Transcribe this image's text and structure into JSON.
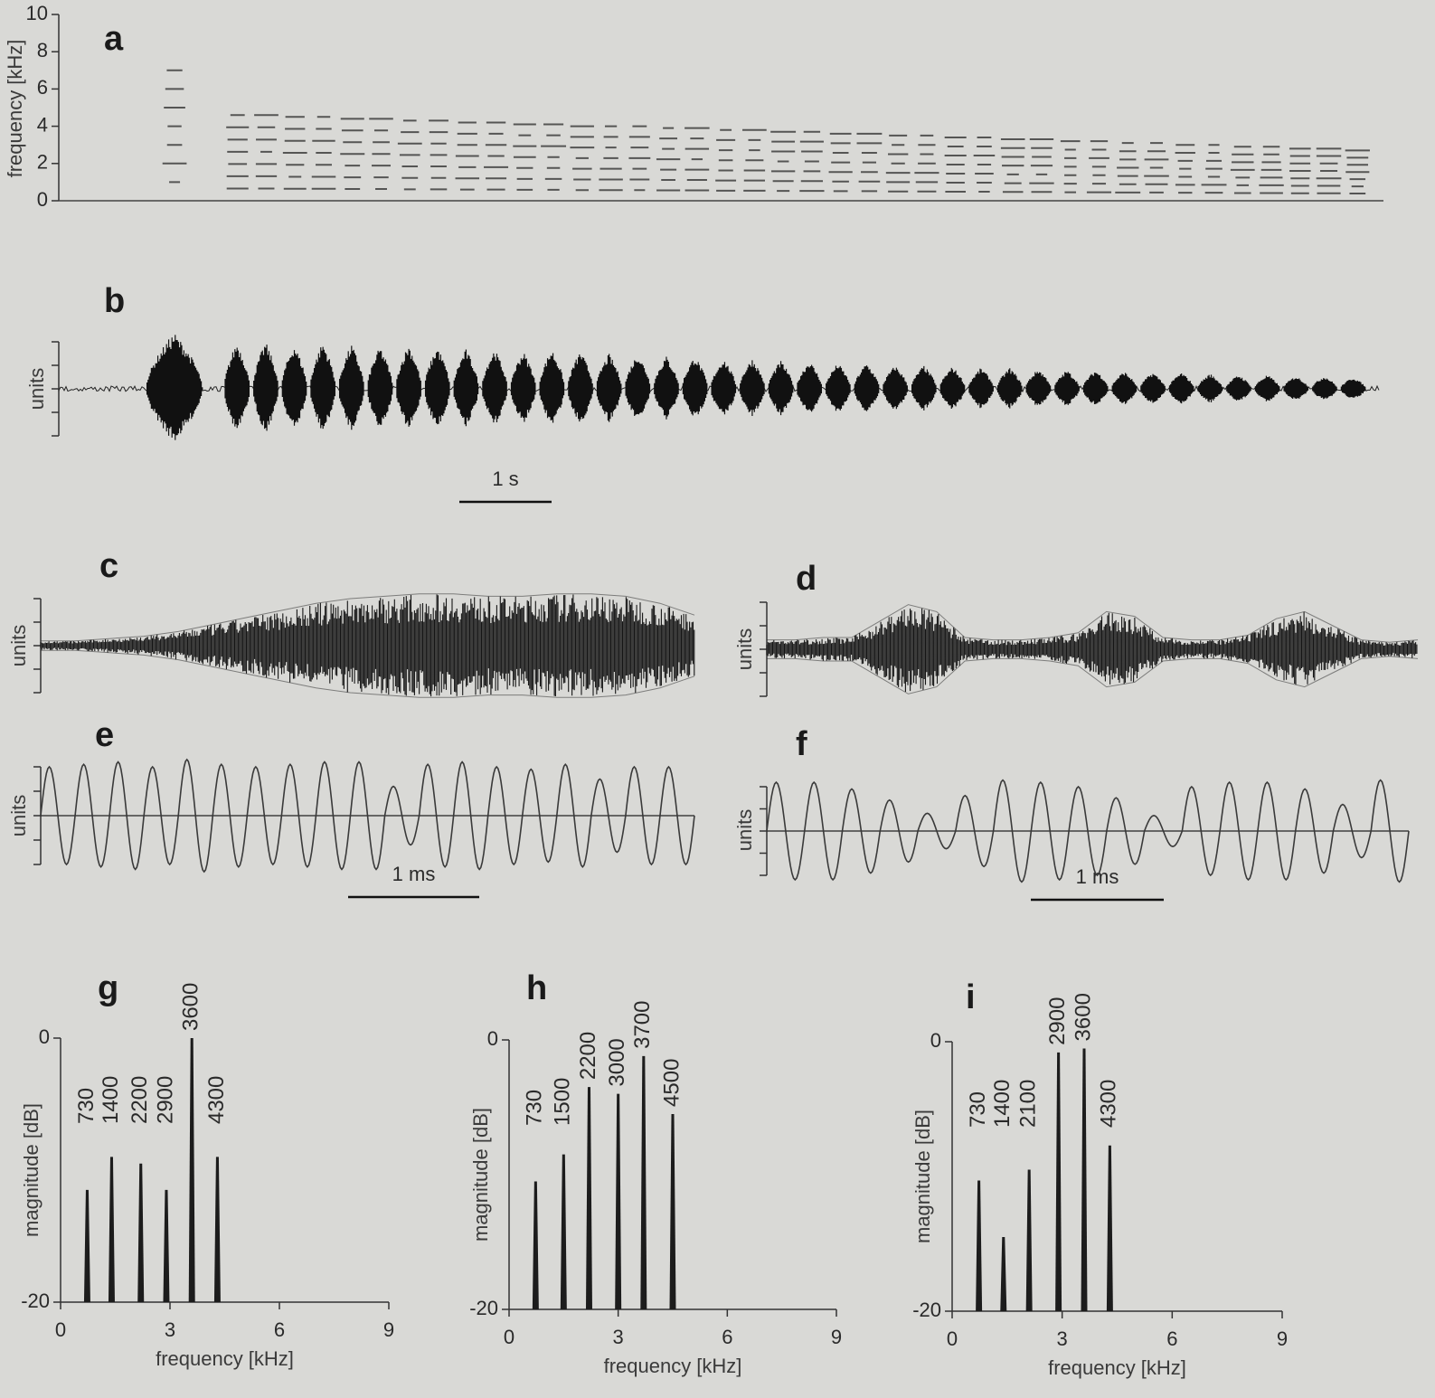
{
  "chart_data": [
    {
      "type": "spectrogram",
      "panel": "a",
      "y_label": "frequency [kHz]",
      "x": [
        1.25,
        1.93,
        2.24,
        2.55,
        2.86,
        3.17,
        3.48,
        3.79,
        4.1,
        4.41,
        4.72,
        5.03,
        5.34,
        5.65,
        5.96,
        6.27,
        6.58,
        6.89,
        7.2,
        7.51,
        7.82,
        8.13,
        8.44,
        8.75,
        9.06,
        9.37,
        9.68,
        9.99,
        10.3,
        10.61,
        10.92,
        11.23,
        11.54,
        11.85,
        12.16,
        12.47,
        12.78,
        13.09,
        13.4,
        13.71,
        14.02
      ],
      "values": [
        7.0,
        4.6,
        4.6,
        4.5,
        4.5,
        4.4,
        4.4,
        4.3,
        4.3,
        4.2,
        4.2,
        4.1,
        4.1,
        4.0,
        4.0,
        4.0,
        3.9,
        3.9,
        3.8,
        3.8,
        3.7,
        3.7,
        3.6,
        3.6,
        3.5,
        3.5,
        3.4,
        3.4,
        3.3,
        3.3,
        3.2,
        3.2,
        3.1,
        3.1,
        3.0,
        3.0,
        2.9,
        2.9,
        2.8,
        2.8,
        2.7
      ],
      "xlim": [
        0,
        14.3
      ],
      "ylim": [
        0,
        10
      ],
      "yticks": [
        0,
        2,
        4,
        6,
        8,
        10
      ]
    },
    {
      "type": "pulses",
      "panel": "b",
      "y_label": "units",
      "x": [
        1.25,
        1.93,
        2.24,
        2.55,
        2.86,
        3.17,
        3.48,
        3.79,
        4.1,
        4.41,
        4.72,
        5.03,
        5.34,
        5.65,
        5.96,
        6.27,
        6.58,
        6.89,
        7.2,
        7.51,
        7.82,
        8.13,
        8.44,
        8.75,
        9.06,
        9.37,
        9.68,
        9.99,
        10.3,
        10.61,
        10.92,
        11.23,
        11.54,
        11.85,
        12.16,
        12.47,
        12.78,
        13.09,
        13.4,
        13.71,
        14.02
      ],
      "values": [
        2.4,
        2.0,
        2.0,
        1.9,
        2.0,
        1.9,
        1.8,
        1.9,
        1.8,
        1.7,
        1.7,
        1.6,
        1.7,
        1.6,
        1.5,
        1.5,
        1.4,
        1.4,
        1.3,
        1.3,
        1.2,
        1.2,
        1.1,
        1.1,
        1.0,
        1.0,
        0.95,
        0.9,
        0.9,
        0.85,
        0.8,
        0.8,
        0.75,
        0.7,
        0.7,
        0.65,
        0.6,
        0.6,
        0.55,
        0.55,
        0.5
      ],
      "xlim": [
        0,
        14.3
      ],
      "ylim": [
        -2,
        2
      ],
      "yticks": [
        -2,
        -1,
        0,
        1,
        2
      ],
      "scale_bar": "1 s"
    },
    {
      "type": "envelope",
      "panel": "c",
      "y_label": "units",
      "values": [
        0.2,
        0.2,
        0.3,
        0.4,
        0.6,
        0.9,
        1.2,
        1.5,
        1.8,
        2.0,
        2.1,
        2.2,
        2.2,
        2.1,
        2.1,
        2.2,
        2.2,
        2.1,
        1.8,
        1.3
      ],
      "ylim": [
        -2,
        2
      ],
      "yticks": [
        -2,
        -1,
        0,
        1,
        2
      ]
    },
    {
      "type": "envelope",
      "panel": "d",
      "y_label": "units",
      "values": [
        0.4,
        0.4,
        0.5,
        0.5,
        1.2,
        1.9,
        1.6,
        0.5,
        0.4,
        0.4,
        0.5,
        0.7,
        1.6,
        1.4,
        0.5,
        0.4,
        0.4,
        0.6,
        1.3,
        1.6,
        1.0,
        0.4,
        0.3,
        0.4
      ],
      "ylim": [
        -2,
        2
      ],
      "yticks": [
        -2,
        -1,
        0,
        1,
        2
      ]
    },
    {
      "type": "cycles",
      "panel": "e",
      "y_label": "units",
      "values": [
        2.0,
        2.1,
        2.2,
        2.0,
        2.3,
        2.1,
        2.0,
        2.1,
        2.2,
        2.2,
        1.2,
        2.1,
        2.2,
        2.0,
        1.9,
        2.1,
        1.5,
        2.0,
        2.0
      ],
      "ylim": [
        -2,
        2
      ],
      "yticks": [
        -2,
        -1,
        0,
        1,
        2
      ],
      "scale_bar": "1 ms"
    },
    {
      "type": "cycles",
      "panel": "f",
      "y_label": "units",
      "values": [
        2.2,
        2.2,
        1.9,
        1.4,
        0.8,
        1.6,
        2.3,
        2.2,
        2.0,
        1.5,
        0.7,
        2.0,
        2.2,
        2.2,
        1.9,
        1.2,
        2.3
      ],
      "ylim": [
        -2,
        2
      ],
      "yticks": [
        -2,
        -1,
        0,
        1,
        2
      ],
      "scale_bar": "1 ms"
    },
    {
      "type": "spectrum",
      "panel": "g",
      "x_label": "frequency [kHz]",
      "y_label": "magnitude [dB]",
      "x": [
        730,
        1400,
        2200,
        2900,
        3600,
        4300
      ],
      "values": [
        -11.5,
        -9,
        -9.5,
        -11.5,
        0,
        -9
      ],
      "xlim": [
        0,
        9000
      ],
      "ylim": [
        -20,
        0
      ],
      "xticks": [
        {
          "value": 0,
          "label": "0"
        },
        {
          "value": 3000,
          "label": "3"
        },
        {
          "value": 6000,
          "label": "6"
        },
        {
          "value": 9000,
          "label": "9"
        }
      ],
      "yticks": [
        -20,
        0
      ]
    },
    {
      "type": "spectrum",
      "panel": "h",
      "x_label": "frequency [kHz]",
      "y_label": "magnitude [dB]",
      "x": [
        730,
        1500,
        2200,
        3000,
        3700,
        4500
      ],
      "values": [
        -10.5,
        -8.5,
        -3.5,
        -4,
        -1.2,
        -5.5
      ],
      "xlim": [
        0,
        9000
      ],
      "ylim": [
        -20,
        0
      ],
      "xticks": [
        {
          "value": 0,
          "label": "0"
        },
        {
          "value": 3000,
          "label": "3"
        },
        {
          "value": 6000,
          "label": "6"
        },
        {
          "value": 9000,
          "label": "9"
        }
      ],
      "yticks": [
        -20,
        0
      ]
    },
    {
      "type": "spectrum",
      "panel": "i",
      "x_label": "frequency [kHz]",
      "y_label": "magnitude [dB]",
      "x": [
        730,
        1400,
        2100,
        2900,
        3600,
        4300
      ],
      "values": [
        -10.3,
        -14.5,
        -9.5,
        -0.8,
        -0.5,
        -7.7
      ],
      "xlim": [
        0,
        9000
      ],
      "ylim": [
        -20,
        0
      ],
      "xticks": [
        {
          "value": 0,
          "label": "0"
        },
        {
          "value": 3000,
          "label": "3"
        },
        {
          "value": 6000,
          "label": "6"
        },
        {
          "value": 9000,
          "label": "9"
        }
      ],
      "yticks": [
        -20,
        0
      ]
    }
  ]
}
